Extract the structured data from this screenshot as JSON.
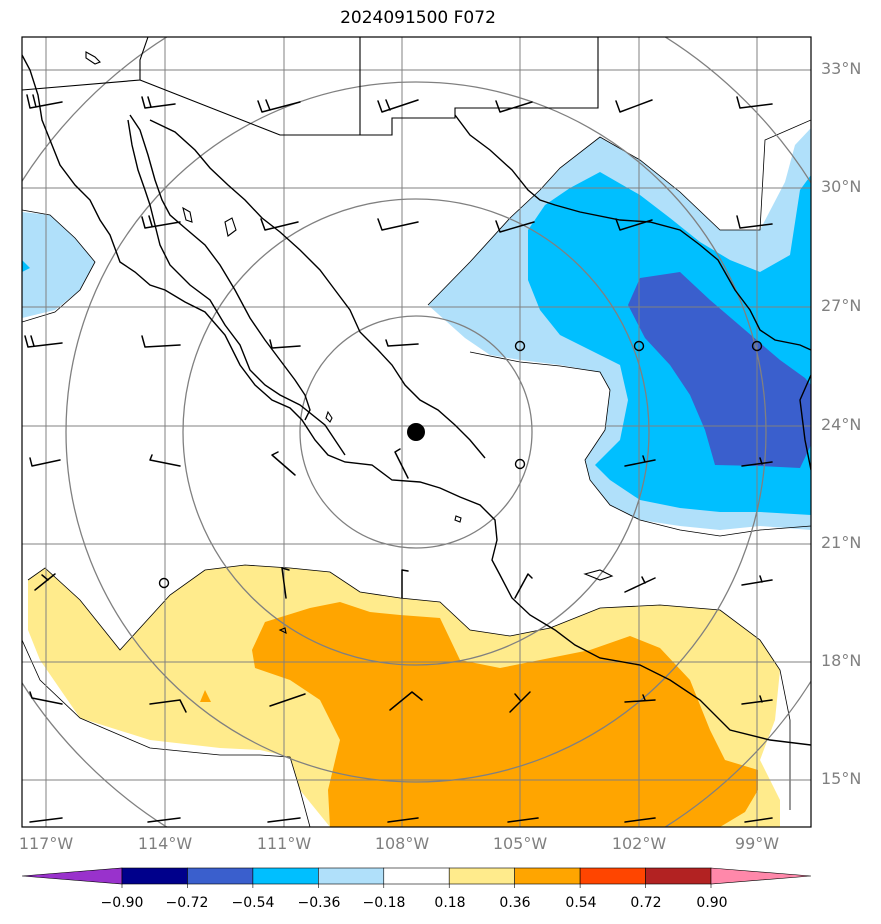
{
  "title": "2024091500 F072",
  "lat_labels": [
    {
      "text": "33°N",
      "lat": 33
    },
    {
      "text": "30°N",
      "lat": 30
    },
    {
      "text": "27°N",
      "lat": 27
    },
    {
      "text": "24°N",
      "lat": 24
    },
    {
      "text": "21°N",
      "lat": 21
    },
    {
      "text": "18°N",
      "lat": 18
    },
    {
      "text": "15°N",
      "lat": 15
    }
  ],
  "lon_labels": [
    {
      "text": "117°W",
      "lon": -117
    },
    {
      "text": "114°W",
      "lon": -114
    },
    {
      "text": "111°W",
      "lon": -111
    },
    {
      "text": "108°W",
      "lon": -108
    },
    {
      "text": "105°W",
      "lon": -105
    },
    {
      "text": "102°W",
      "lon": -102
    },
    {
      "text": "99°W",
      "lon": -99
    }
  ],
  "colorbar": {
    "ticks": [
      "−0.90",
      "−0.72",
      "−0.54",
      "−0.36",
      "−0.18",
      "0.18",
      "0.36",
      "0.54",
      "0.72",
      "0.90"
    ],
    "colors": [
      "#9932cc",
      "#00008b",
      "#3a5fcd",
      "#00bfff",
      "#b0e0fa",
      "#ffffff",
      "#ffeb8c",
      "#ffa500",
      "#ff4500",
      "#b22222",
      "#ff88aa"
    ]
  },
  "palette": {
    "light_yellow": "#ffeb8c",
    "orange": "#ffa500",
    "light_blue": "#b0e0fa",
    "sky_blue": "#00bfff",
    "royal_blue": "#3a5fcd",
    "grid": "#808080"
  },
  "storm_center": {
    "lat": 23.8,
    "lon": -107.7
  }
}
